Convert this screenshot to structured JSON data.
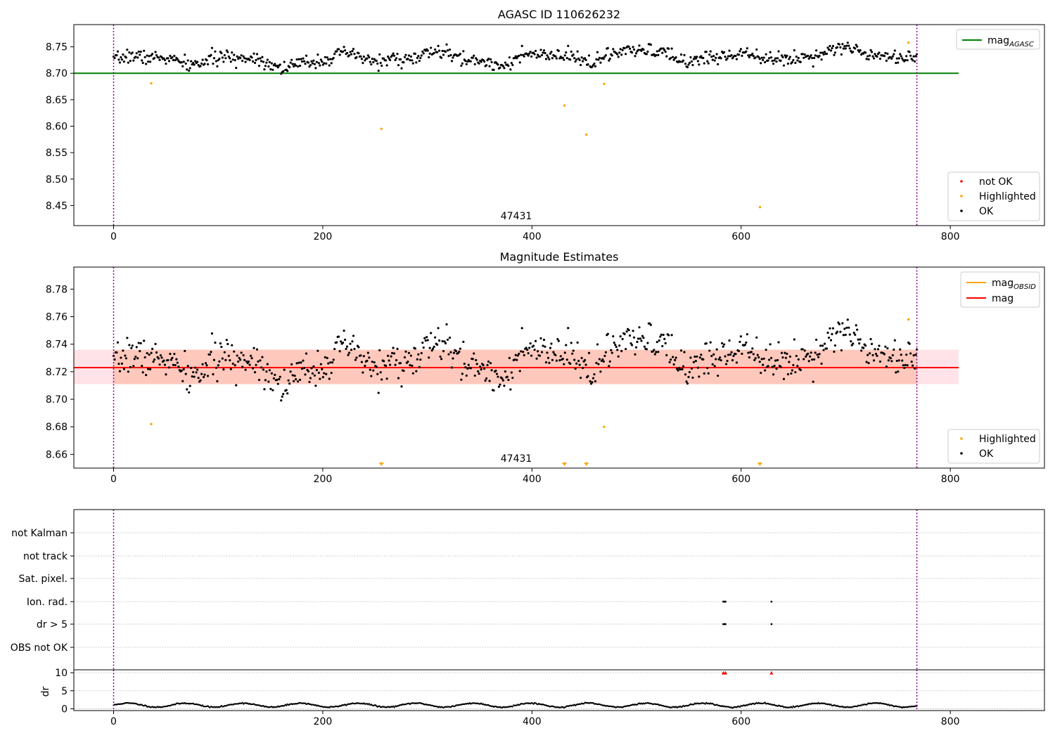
{
  "chart_data": [
    {
      "type": "scatter",
      "title": "AGASC ID 110626232",
      "xlim": [
        -38,
        890
      ],
      "ylim": [
        8.412,
        8.792
      ],
      "xticks": [
        "0",
        "200",
        "400",
        "600",
        "800"
      ],
      "yticks": [
        "8.45",
        "8.50",
        "8.55",
        "8.60",
        "8.65",
        "8.70",
        "8.75"
      ],
      "ytick_values": [
        8.45,
        8.5,
        8.55,
        8.6,
        8.65,
        8.7,
        8.75
      ],
      "obsid_label": "47431",
      "obsid_label_x": 385,
      "obs_boundaries": [
        0,
        768
      ],
      "mag_agasc": 8.7,
      "line_extent": [
        -38,
        808
      ],
      "ok_points": {
        "x_start": 0,
        "x_end": 768,
        "count": 768,
        "base": 8.722,
        "slope": 2e-05,
        "wave": [
          [
            8.0,
            0.008
          ],
          [
            3.5,
            0.004
          ],
          [
            18.0,
            0.003
          ]
        ]
      },
      "highlighted_points": [
        {
          "x": 36,
          "y": 8.681
        },
        {
          "x": 256,
          "y": 8.595
        },
        {
          "x": 431,
          "y": 8.639
        },
        {
          "x": 452,
          "y": 8.584
        },
        {
          "x": 469,
          "y": 8.68
        },
        {
          "x": 618,
          "y": 8.447
        },
        {
          "x": 760,
          "y": 8.758
        }
      ],
      "legend_lines": [
        {
          "label": "mag",
          "subscript": "AGASC",
          "color": "#008000"
        }
      ],
      "legend_points": [
        {
          "label": "not OK",
          "color": "#ff0000"
        },
        {
          "label": "Highlighted",
          "color": "#ffa500"
        },
        {
          "label": "OK",
          "color": "#000000"
        }
      ]
    },
    {
      "type": "scatter",
      "title": "Magnitude Estimates",
      "xlim": [
        -38,
        890
      ],
      "ylim": [
        8.65,
        8.796
      ],
      "xticks": [
        "0",
        "200",
        "400",
        "600",
        "800"
      ],
      "yticks": [
        "8.66",
        "8.68",
        "8.70",
        "8.72",
        "8.74",
        "8.76",
        "8.78"
      ],
      "ytick_values": [
        8.66,
        8.68,
        8.7,
        8.72,
        8.74,
        8.76,
        8.78
      ],
      "obsid_label": "47431",
      "obsid_label_x": 385,
      "obs_boundaries": [
        0,
        768
      ],
      "mag": 8.723,
      "mag_obsid": 8.723,
      "band": [
        8.711,
        8.736
      ],
      "line_extent": [
        -38,
        808
      ],
      "ok_points": {
        "x_start": 0,
        "x_end": 768,
        "count": 768,
        "base": 8.722,
        "slope": 2e-05,
        "wave": [
          [
            8.0,
            0.008
          ],
          [
            3.5,
            0.004
          ],
          [
            18.0,
            0.003
          ]
        ]
      },
      "highlighted_points": [
        {
          "x": 36,
          "y": 8.682
        },
        {
          "x": 469,
          "y": 8.68
        },
        {
          "x": 760,
          "y": 8.758
        }
      ],
      "off_scale_markers": [
        256,
        431,
        452,
        618
      ],
      "legend_lines": [
        {
          "label": "mag",
          "subscript": "OBSID",
          "color": "#ffa500"
        },
        {
          "label": "mag",
          "subscript": "",
          "color": "#ff0000"
        }
      ],
      "legend_points": [
        {
          "label": "Highlighted",
          "color": "#ffa500"
        },
        {
          "label": "OK",
          "color": "#000000"
        }
      ]
    },
    {
      "type": "scatter",
      "title": "",
      "xlim": [
        -38,
        890
      ],
      "xticks": [
        "0",
        "200",
        "400",
        "600",
        "800"
      ],
      "obs_boundaries": [
        0,
        768
      ],
      "flag_categories": [
        "not Kalman",
        "not track",
        "Sat. pixel.",
        "Ion. rad.",
        "dr > 5",
        "OBS not OK"
      ],
      "flag_points": [
        {
          "category": "Ion. rad.",
          "x": [
            583,
            584,
            585,
            629
          ]
        },
        {
          "category": "dr > 5",
          "x": [
            583,
            584,
            585,
            629
          ]
        }
      ],
      "flag_colors": {
        "ok": "#000000",
        "bad": "#ff0000"
      }
    },
    {
      "type": "scatter",
      "title": "",
      "ylabel": "dr",
      "xlim": [
        -38,
        890
      ],
      "ylim": [
        -0.5,
        10.8
      ],
      "xticks": [
        "0",
        "200",
        "400",
        "600",
        "800"
      ],
      "yticks": [
        "0",
        "5",
        "10"
      ],
      "ytick_values": [
        0,
        5,
        10
      ],
      "obs_boundaries": [
        0,
        768
      ],
      "dr_points": {
        "x_start": 0,
        "x_end": 768,
        "count": 768,
        "base": 1.0,
        "amplitude": 0.55,
        "period": 55
      },
      "dr_outliers": [
        {
          "x": 583,
          "y": 10.0
        },
        {
          "x": 585,
          "y": 10.0
        },
        {
          "x": 629,
          "y": 10.0
        }
      ]
    }
  ],
  "colors": {
    "ok": "#000000",
    "highlighted": "#ffa500",
    "not_ok": "#ff0000",
    "agasc_line": "#008000",
    "mag_line": "#ff0000",
    "mag_obsid_line": "#ffa500",
    "band_fill": "#ffc0cb",
    "band_fill_obsid": "#ffa07a",
    "obs_boundary": "#800080",
    "grid": "#b0b0b0"
  }
}
